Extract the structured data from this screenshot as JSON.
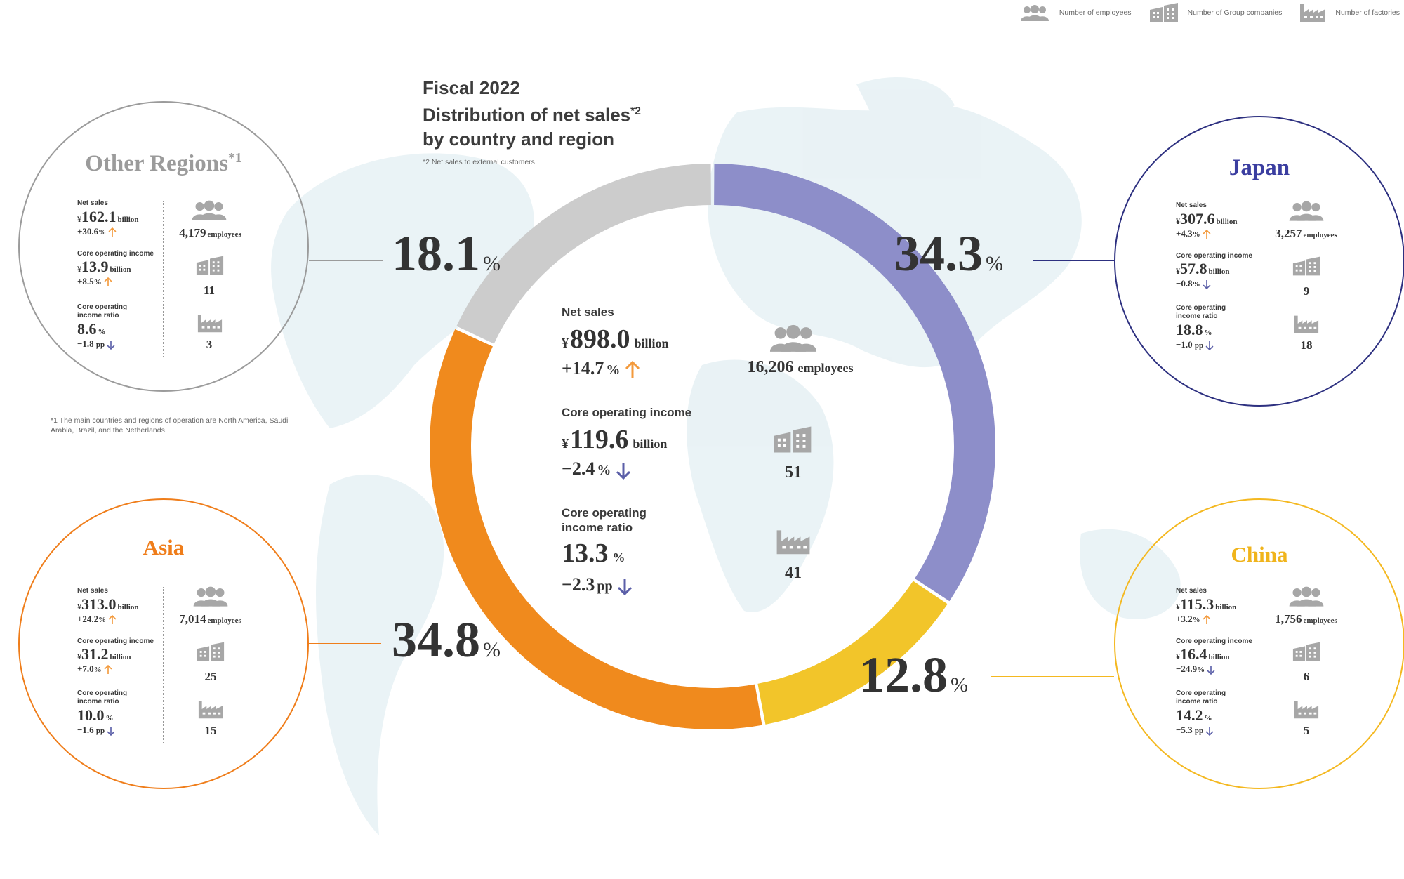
{
  "colors": {
    "japan": "#8d8ec9",
    "china": "#f2c52a",
    "asia": "#f08a1d",
    "other": "#cccccc",
    "japan_border": "#2d3080",
    "china_border": "#f4b820",
    "asia_border": "#ef7d1a",
    "other_border": "#9b9b9b",
    "up_arrow": "#f39a3c",
    "down_arrow": "#5b5fa8",
    "icon_gray": "#a7a7a7"
  },
  "legend": {
    "employees": "Number of employees",
    "companies": "Number of Group companies",
    "factories": "Number of factories",
    "employees_icon": "people-icon",
    "companies_icon": "building-icon",
    "factories_icon": "factory-icon"
  },
  "title": {
    "line1": "Fiscal 2022",
    "line2": "Distribution of net sales",
    "line2_sup": "*2",
    "line3": "by country and region"
  },
  "notes": {
    "note2": "*2 Net sales to external customers",
    "note1": "*1 The main countries and regions of operation are North America, Saudi Arabia, Brazil, and the Netherlands."
  },
  "chart_data": {
    "type": "pie",
    "variant": "donut",
    "unit": "%",
    "title": "Fiscal 2022 Distribution of net sales by country and region",
    "slices": [
      {
        "label": "Japan",
        "value": 34.3,
        "color": "#8d8ec9",
        "value_text": "34.3"
      },
      {
        "label": "China",
        "value": 12.8,
        "color": "#f2c52a",
        "value_text": "12.8"
      },
      {
        "label": "Asia",
        "value": 34.8,
        "color": "#f08a1d",
        "value_text": "34.8"
      },
      {
        "label": "Other Regions",
        "value": 18.1,
        "color": "#cccccc",
        "value_text": "18.1"
      }
    ],
    "order": "clockwise from top",
    "pct_unit": "%"
  },
  "total": {
    "net_sales_label": "Net sales",
    "net_sales_yen": "¥",
    "net_sales_value": "898.0",
    "net_sales_unit": "billion",
    "net_sales_change": "+14.7",
    "net_sales_change_unit": "%",
    "net_sales_change_dir": "up",
    "coi_label": "Core operating income",
    "coi_yen": "¥",
    "coi_value": "119.6",
    "coi_unit": "billion",
    "coi_change": "−2.4",
    "coi_change_unit": "%",
    "coi_change_dir": "down",
    "ratio_label_1": "Core operating",
    "ratio_label_2": "income ratio",
    "ratio_value": "13.3",
    "ratio_unit": "%",
    "ratio_change": "−2.3",
    "ratio_change_unit": "pp",
    "ratio_change_dir": "down",
    "employees": "16,206",
    "employees_unit": "employees",
    "companies": "51",
    "factories": "41"
  },
  "regions": {
    "other": {
      "name": "Other Regions",
      "name_sup": "*1",
      "net_sales_label": "Net sales",
      "net_sales_value": "162.1",
      "net_sales_unit": "billion",
      "net_sales_change": "+30.6",
      "net_sales_change_unit": "%",
      "net_sales_dir": "up",
      "coi_label": "Core operating income",
      "coi_value": "13.9",
      "coi_unit": "billion",
      "coi_change": "+8.5",
      "coi_change_unit": "%",
      "coi_dir": "up",
      "ratio_label_1": "Core operating",
      "ratio_label_2": "income ratio",
      "ratio_value": "8.6",
      "ratio_unit": "%",
      "ratio_change": "−1.8",
      "ratio_change_unit": "pp",
      "ratio_dir": "down",
      "employees": "4,179",
      "employees_unit": "employees",
      "companies": "11",
      "factories": "3"
    },
    "japan": {
      "name": "Japan",
      "net_sales_label": "Net sales",
      "net_sales_value": "307.6",
      "net_sales_unit": "billion",
      "net_sales_change": "+4.3",
      "net_sales_change_unit": "%",
      "net_sales_dir": "up",
      "coi_label": "Core operating income",
      "coi_value": "57.8",
      "coi_unit": "billion",
      "coi_change": "−0.8",
      "coi_change_unit": "%",
      "coi_dir": "down",
      "ratio_label_1": "Core operating",
      "ratio_label_2": "income ratio",
      "ratio_value": "18.8",
      "ratio_unit": "%",
      "ratio_change": "−1.0",
      "ratio_change_unit": "pp",
      "ratio_dir": "down",
      "employees": "3,257",
      "employees_unit": "employees",
      "companies": "9",
      "factories": "18"
    },
    "asia": {
      "name": "Asia",
      "net_sales_label": "Net sales",
      "net_sales_value": "313.0",
      "net_sales_unit": "billion",
      "net_sales_change": "+24.2",
      "net_sales_change_unit": "%",
      "net_sales_dir": "up",
      "coi_label": "Core operating income",
      "coi_value": "31.2",
      "coi_unit": "billion",
      "coi_change": "+7.0",
      "coi_change_unit": "%",
      "coi_dir": "up",
      "ratio_label_1": "Core operating",
      "ratio_label_2": "income ratio",
      "ratio_value": "10.0",
      "ratio_unit": "%",
      "ratio_change": "−1.6",
      "ratio_change_unit": "pp",
      "ratio_dir": "down",
      "employees": "7,014",
      "employees_unit": "employees",
      "companies": "25",
      "factories": "15"
    },
    "china": {
      "name": "China",
      "net_sales_label": "Net sales",
      "net_sales_value": "115.3",
      "net_sales_unit": "billion",
      "net_sales_change": "+3.2",
      "net_sales_change_unit": "%",
      "net_sales_dir": "up",
      "coi_label": "Core operating income",
      "coi_value": "16.4",
      "coi_unit": "billion",
      "coi_change": "−24.9",
      "coi_change_unit": "%",
      "coi_dir": "down",
      "ratio_label_1": "Core operating",
      "ratio_label_2": "income ratio",
      "ratio_value": "14.2",
      "ratio_unit": "%",
      "ratio_change": "−5.3",
      "ratio_change_unit": "pp",
      "ratio_dir": "down",
      "employees": "1,756",
      "employees_unit": "employees",
      "companies": "6",
      "factories": "5"
    }
  },
  "yen_symbol": "¥"
}
